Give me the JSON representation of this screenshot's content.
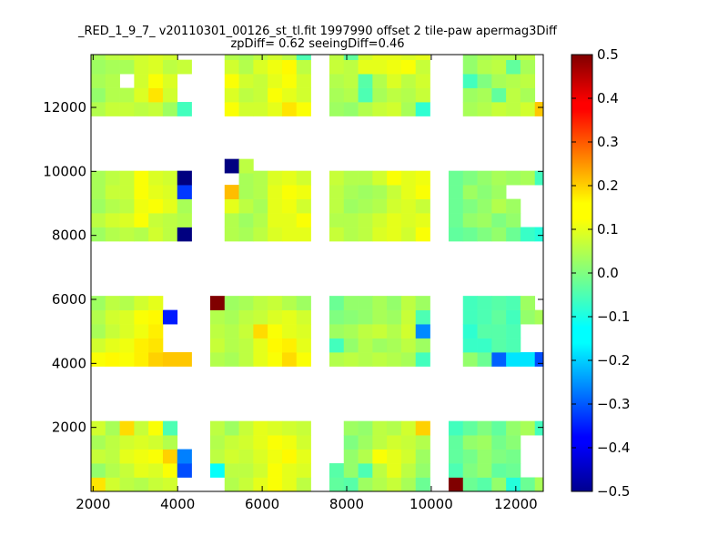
{
  "chart_data": {
    "type": "heatmap",
    "title_line1": "_RED_1_9_7_ v20110301_00126_st_tl.fit 1997990 offset 2 tile-paw apermag3Diff",
    "title_line2": "zpDiff= 0.62 seeingDiff=0.46",
    "xlim": [
      1950,
      12650
    ],
    "ylim": [
      0,
      13650
    ],
    "x_ticks": [
      2000,
      4000,
      6000,
      8000,
      10000,
      12000
    ],
    "x_tick_labels": [
      "2000",
      "4000",
      "6000",
      "8000",
      "10000",
      "12000"
    ],
    "y_ticks": [
      2000,
      4000,
      6000,
      8000,
      10000,
      12000
    ],
    "y_tick_labels": [
      "2000",
      "4000",
      "6000",
      "8000",
      "10000",
      "12000"
    ],
    "colorbar": {
      "colormap": "jet",
      "range": [
        -0.5,
        0.5
      ],
      "ticks": [
        0.5,
        0.4,
        0.3,
        0.2,
        0.1,
        0.0,
        -0.1,
        -0.2,
        -0.3,
        -0.4,
        -0.5
      ],
      "tick_labels": [
        "0.5",
        "0.4",
        "0.3",
        "0.2",
        "0.1",
        "0.0",
        "−0.1",
        "−0.2",
        "−0.3",
        "−0.4",
        "−0.5"
      ]
    },
    "cell_size": [
      340,
      440
    ],
    "columns_x": [
      [
        1950,
        2290,
        2630,
        2970,
        3310,
        3650,
        3990
      ],
      [
        4770,
        5110,
        5450,
        5790,
        6130,
        6470,
        6810
      ],
      [
        7590,
        7930,
        8270,
        8610,
        8950,
        9290,
        9630
      ],
      [
        10410,
        10750,
        11090,
        11430,
        11770,
        12110,
        12450
      ]
    ],
    "rows_y": [
      [
        0,
        440,
        880,
        1320,
        1760
      ],
      [
        3910,
        4350,
        4790,
        5230,
        5670
      ],
      [
        7820,
        8260,
        8700,
        9140,
        9580
      ],
      [
        11730,
        12170,
        12610,
        13050,
        13490
      ]
    ],
    "cells": [
      [
        0,
        0,
        [
          [
            0.15,
            0.08,
            0.06,
            0.05,
            0.07,
            0.08,
            null
          ],
          [
            0.02,
            0.05,
            0.07,
            0.1,
            0.09,
            0.12,
            -0.3
          ],
          [
            0.07,
            0.06,
            0.1,
            0.11,
            0.12,
            0.17,
            -0.25
          ],
          [
            0.04,
            0.06,
            0.08,
            0.09,
            0.08,
            0.05,
            null
          ],
          [
            0.08,
            0.04,
            0.16,
            0.07,
            0.12,
            -0.05,
            null
          ]
        ]
      ],
      [
        1,
        0,
        [
          [
            null,
            0.05,
            0.07,
            0.1,
            0.12,
            0.1,
            0.06
          ],
          [
            -0.12,
            0.06,
            0.06,
            0.08,
            0.12,
            0.1,
            0.09
          ],
          [
            0.06,
            0.08,
            0.07,
            0.09,
            0.11,
            0.13,
            0.1
          ],
          [
            0.05,
            0.07,
            0.08,
            0.1,
            0.12,
            0.11,
            0.08
          ],
          [
            0.06,
            0.03,
            0.07,
            0.1,
            0.09,
            0.08,
            0.07
          ]
        ]
      ],
      [
        2,
        0,
        [
          [
            -0.03,
            -0.04,
            0.03,
            0.05,
            0.07,
            0.04,
            -0.02
          ],
          [
            -0.04,
            0.02,
            -0.05,
            0.06,
            0.1,
            0.06,
            0.02
          ],
          [
            null,
            0.02,
            0.05,
            0.12,
            0.1,
            0.08,
            0.03
          ],
          [
            null,
            0.0,
            0.03,
            0.06,
            0.08,
            0.07,
            0.05
          ],
          [
            null,
            0.03,
            0.02,
            0.06,
            0.05,
            0.08,
            0.17
          ]
        ]
      ],
      [
        3,
        0,
        [
          [
            0.5,
            -0.02,
            -0.04,
            0.02,
            -0.09,
            -0.02,
            0.04
          ],
          [
            -0.05,
            0.0,
            0.02,
            -0.03,
            -0.02,
            null,
            null
          ],
          [
            -0.03,
            -0.01,
            0.02,
            0.0,
            -0.01,
            null,
            null
          ],
          [
            -0.03,
            0.02,
            0.03,
            -0.01,
            0.01,
            null,
            null
          ],
          [
            -0.06,
            -0.03,
            0.0,
            -0.03,
            0.02,
            0.04,
            -0.06
          ]
        ]
      ],
      [
        0,
        1,
        [
          [
            0.12,
            0.13,
            0.12,
            0.14,
            0.17,
            0.18,
            0.18
          ],
          [
            0.08,
            0.1,
            0.11,
            0.14,
            0.15,
            null,
            null
          ],
          [
            0.04,
            0.07,
            0.09,
            0.11,
            0.14,
            null,
            null
          ],
          [
            0.05,
            0.08,
            0.09,
            0.12,
            0.13,
            -0.35,
            null
          ],
          [
            0.03,
            0.06,
            0.05,
            0.08,
            0.1,
            null,
            null
          ]
        ]
      ],
      [
        1,
        1,
        [
          [
            0.05,
            0.04,
            0.06,
            0.1,
            0.12,
            0.16,
            0.12
          ],
          [
            0.07,
            0.05,
            0.06,
            0.1,
            0.13,
            0.14,
            0.1
          ],
          [
            0.06,
            0.05,
            0.07,
            0.16,
            0.12,
            0.1,
            0.09
          ],
          [
            0.05,
            0.04,
            0.06,
            0.07,
            0.09,
            0.1,
            0.08
          ],
          [
            0.5,
            0.03,
            0.04,
            0.06,
            0.07,
            0.05,
            0.03
          ]
        ]
      ],
      [
        2,
        1,
        [
          [
            0.05,
            0.06,
            0.05,
            0.06,
            0.05,
            0.04,
            -0.06
          ],
          [
            -0.06,
            0.02,
            0.05,
            0.03,
            0.04,
            0.06,
            0.03
          ],
          [
            0.03,
            0.04,
            0.06,
            0.07,
            0.05,
            0.08,
            -0.24
          ],
          [
            0.0,
            0.01,
            0.02,
            0.04,
            0.03,
            0.07,
            -0.05
          ],
          [
            -0.02,
            0.02,
            0.02,
            0.04,
            0.02,
            0.06,
            0.03
          ]
        ]
      ],
      [
        3,
        1,
        [
          [
            null,
            0.02,
            -0.02,
            -0.28,
            -0.15,
            -0.15,
            -0.3
          ],
          [
            null,
            -0.07,
            -0.07,
            -0.04,
            -0.05,
            null,
            null
          ],
          [
            null,
            -0.08,
            -0.04,
            -0.04,
            -0.05,
            null,
            null
          ],
          [
            null,
            -0.06,
            -0.05,
            -0.03,
            -0.06,
            0.02,
            0.04
          ],
          [
            null,
            -0.06,
            -0.05,
            -0.04,
            -0.05,
            0.03,
            null
          ]
        ]
      ],
      [
        0,
        2,
        [
          [
            0.03,
            0.05,
            0.06,
            0.05,
            0.08,
            0.06,
            -0.5
          ],
          [
            0.06,
            0.08,
            0.09,
            0.12,
            0.07,
            0.06,
            0.05
          ],
          [
            0.03,
            0.05,
            0.06,
            0.11,
            0.12,
            0.1,
            0.04
          ],
          [
            0.04,
            0.07,
            0.07,
            0.12,
            0.1,
            0.09,
            -0.32
          ],
          [
            0.04,
            0.06,
            0.07,
            0.12,
            0.09,
            0.08,
            -0.5
          ]
        ]
      ],
      [
        1,
        2,
        [
          [
            null,
            0.05,
            0.04,
            0.06,
            0.09,
            0.1,
            0.1
          ],
          [
            null,
            0.05,
            0.03,
            0.05,
            0.1,
            0.1,
            0.12
          ],
          [
            null,
            0.1,
            0.06,
            0.04,
            0.1,
            0.11,
            0.08
          ],
          [
            null,
            0.19,
            0.04,
            0.05,
            0.1,
            0.12,
            0.11
          ],
          [
            null,
            null,
            0.04,
            0.05,
            0.09,
            0.1,
            0.08
          ]
        ]
      ],
      [
        2,
        2,
        [
          [
            0.07,
            0.05,
            0.06,
            0.09,
            0.1,
            0.08,
            0.12
          ],
          [
            0.05,
            0.05,
            0.06,
            0.08,
            0.1,
            0.09,
            0.1
          ],
          [
            0.06,
            0.03,
            0.04,
            0.05,
            0.08,
            0.09,
            0.07
          ],
          [
            0.06,
            0.04,
            0.03,
            0.04,
            0.07,
            0.1,
            0.12
          ],
          [
            0.07,
            0.05,
            0.05,
            0.08,
            0.12,
            0.1,
            0.11
          ]
        ]
      ],
      [
        3,
        2,
        [
          [
            -0.03,
            -0.02,
            0.0,
            0.02,
            -0.02,
            -0.07,
            -0.09
          ],
          [
            -0.02,
            0.02,
            0.03,
            0.0,
            0.02,
            null,
            null
          ],
          [
            -0.02,
            0.0,
            0.02,
            0.05,
            0.03,
            null,
            null
          ],
          [
            -0.02,
            0.03,
            0.01,
            0.03,
            null,
            null,
            null
          ],
          [
            -0.02,
            0.0,
            0.02,
            0.04,
            0.03,
            0.04,
            -0.06
          ]
        ]
      ],
      [
        0,
        3,
        [
          [
            0.05,
            0.07,
            0.07,
            0.06,
            0.07,
            0.03,
            -0.06
          ],
          [
            0.02,
            0.05,
            0.05,
            0.09,
            0.15,
            0.08,
            null
          ],
          [
            0.04,
            0.05,
            null,
            0.08,
            0.12,
            0.09,
            null
          ],
          [
            0.03,
            0.04,
            0.04,
            0.08,
            0.09,
            0.06,
            0.07
          ],
          [
            0.04,
            0.06,
            0.07,
            0.08,
            0.09,
            0.08,
            null
          ]
        ]
      ],
      [
        1,
        3,
        [
          [
            null,
            0.12,
            0.08,
            0.08,
            0.1,
            0.15,
            0.12
          ],
          [
            null,
            0.09,
            0.06,
            0.07,
            0.12,
            0.1,
            0.08
          ],
          [
            null,
            0.12,
            0.08,
            0.07,
            0.1,
            0.12,
            0.08
          ],
          [
            null,
            0.08,
            0.05,
            0.09,
            0.11,
            0.13,
            0.06
          ],
          [
            null,
            0.05,
            0.04,
            0.06,
            0.08,
            0.06,
            -0.05
          ]
        ]
      ],
      [
        2,
        3,
        [
          [
            0.03,
            0.02,
            0.05,
            0.07,
            0.08,
            0.04,
            -0.08
          ],
          [
            0.04,
            0.05,
            -0.05,
            0.04,
            0.06,
            0.05,
            0.07
          ],
          [
            0.05,
            0.06,
            -0.04,
            0.05,
            0.09,
            0.06,
            0.08
          ],
          [
            0.07,
            0.06,
            0.1,
            0.1,
            0.11,
            0.12,
            0.07
          ],
          [
            0.06,
            -0.03,
            0.08,
            0.1,
            0.1,
            0.09,
            0.1
          ]
        ]
      ],
      [
        3,
        3,
        [
          [
            null,
            0.04,
            0.05,
            0.07,
            0.06,
            0.08,
            0.18
          ],
          [
            null,
            0.03,
            0.04,
            -0.03,
            0.06,
            0.04,
            null
          ],
          [
            null,
            -0.06,
            0.0,
            0.04,
            0.05,
            0.06,
            null
          ],
          [
            null,
            0.02,
            0.05,
            0.06,
            -0.03,
            0.04,
            null
          ],
          [
            null,
            0.02,
            0.04,
            0.05,
            0.05,
            0.06,
            null
          ]
        ]
      ]
    ],
    "extra_cells": [
      [
        5110,
        9950,
        -0.5
      ],
      [
        5450,
        9950,
        0.06
      ]
    ]
  }
}
